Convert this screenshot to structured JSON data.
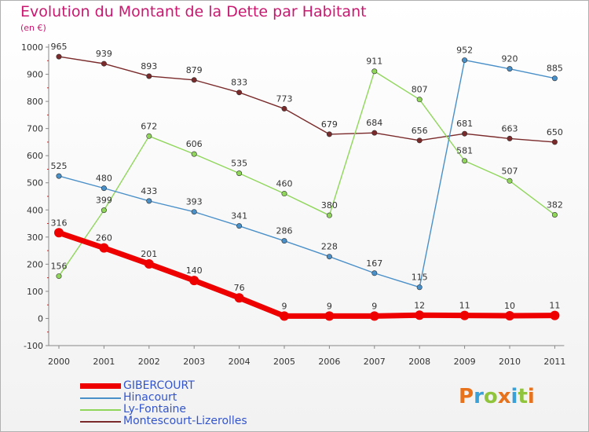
{
  "title": "Evolution du Montant de la Dette par Habitant",
  "subtitle": "(en €)",
  "logo": {
    "text": "Proxiti",
    "colors": [
      "#e8721c",
      "#3aa0d8",
      "#8fc43c",
      "#e8721c",
      "#3aa0d8",
      "#8fc43c",
      "#e8721c"
    ]
  },
  "chart_data": {
    "type": "line",
    "x": [
      "2000",
      "2001",
      "2002",
      "2003",
      "2004",
      "2005",
      "2006",
      "2007",
      "2008",
      "2009",
      "2010",
      "2011"
    ],
    "ylim": [
      -100,
      1000
    ],
    "yticks": [
      -100,
      0,
      100,
      200,
      300,
      400,
      500,
      600,
      700,
      800,
      900,
      1000
    ],
    "grid": false,
    "legend_position": "bottom-left",
    "series": [
      {
        "name": "GIBERCOURT",
        "color": "#ee0000",
        "values": [
          316,
          260,
          201,
          140,
          76,
          9,
          9,
          9,
          12,
          11,
          10,
          11
        ]
      },
      {
        "name": "Hinacourt",
        "color": "#4a90c8",
        "values": [
          525,
          480,
          433,
          393,
          341,
          286,
          228,
          167,
          115,
          952,
          920,
          885
        ]
      },
      {
        "name": "Ly-Fontaine",
        "color": "#8fd65a",
        "values": [
          156,
          399,
          672,
          606,
          535,
          460,
          380,
          911,
          807,
          581,
          507,
          382
        ]
      },
      {
        "name": "Montescourt-Lizerolles",
        "color": "#7a2a2a",
        "values": [
          965,
          939,
          893,
          879,
          833,
          773,
          679,
          684,
          656,
          681,
          663,
          650
        ]
      }
    ]
  }
}
